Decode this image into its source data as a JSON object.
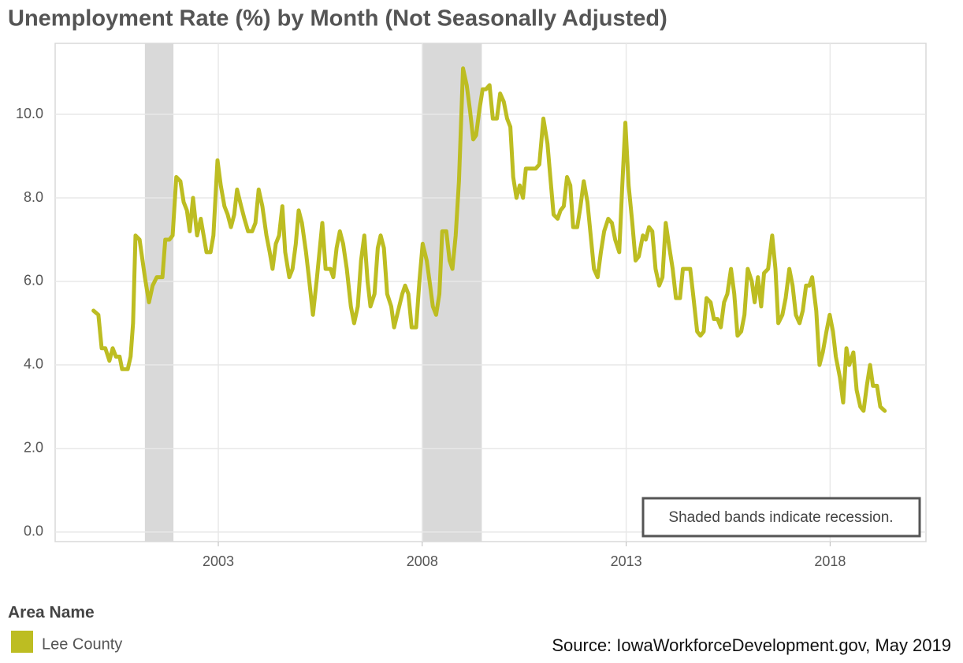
{
  "chart_data": {
    "type": "line",
    "title": "Unemployment Rate (%) by Month (Not Seasonally Adjusted)",
    "annotation": "Shaded bands indicate recession.",
    "legend_title": "Area Name",
    "source": "Source: IowaWorkforceDevelopment.gov, May 2019",
    "xlim": [
      1999.0,
      2020.35
    ],
    "ylim": [
      -0.23,
      11.7
    ],
    "xticks": [
      2003,
      2008,
      2013,
      2018
    ],
    "yticks": [
      {
        "value": 0,
        "label": "0.0"
      },
      {
        "value": 2,
        "label": "2.0"
      },
      {
        "value": 4,
        "label": "4.0"
      },
      {
        "value": 6,
        "label": "6.0"
      },
      {
        "value": 8,
        "label": "8.0"
      },
      {
        "value": 10,
        "label": "10.0"
      }
    ],
    "grid": true,
    "recessions": [
      [
        2001.2,
        2001.9
      ],
      [
        2008.0,
        2009.46
      ]
    ],
    "recession_color": "#d9d9d9",
    "x": [
      1999.94,
      2000.06,
      2000.14,
      2000.23,
      2000.33,
      2000.41,
      2000.49,
      2000.58,
      2000.64,
      2000.78,
      2000.85,
      2000.91,
      2000.97,
      2001.07,
      2001.2,
      2001.3,
      2001.39,
      2001.49,
      2001.63,
      2001.7,
      2001.8,
      2001.88,
      2001.97,
      2002.07,
      2002.15,
      2002.23,
      2002.3,
      2002.38,
      2002.48,
      2002.57,
      2002.71,
      2002.81,
      2002.88,
      2002.98,
      2003.06,
      2003.15,
      2003.23,
      2003.31,
      2003.39,
      2003.46,
      2003.56,
      2003.64,
      2003.73,
      2003.83,
      2003.91,
      2003.99,
      2004.08,
      2004.18,
      2004.26,
      2004.33,
      2004.41,
      2004.49,
      2004.57,
      2004.64,
      2004.74,
      2004.82,
      2004.9,
      2004.97,
      2005.05,
      2005.15,
      2005.22,
      2005.32,
      2005.42,
      2005.55,
      2005.63,
      2005.75,
      2005.82,
      2005.9,
      2005.98,
      2006.06,
      2006.15,
      2006.25,
      2006.33,
      2006.42,
      2006.5,
      2006.58,
      2006.66,
      2006.73,
      2006.83,
      2006.91,
      2006.98,
      2007.06,
      2007.14,
      2007.24,
      2007.31,
      2007.41,
      2007.51,
      2007.58,
      2007.66,
      2007.74,
      2007.85,
      2007.93,
      2008.01,
      2008.11,
      2008.18,
      2008.26,
      2008.34,
      2008.42,
      2008.49,
      2008.59,
      2008.67,
      2008.74,
      2008.82,
      2008.9,
      2009,
      2009.09,
      2009.17,
      2009.25,
      2009.32,
      2009.4,
      2009.48,
      2009.56,
      2009.65,
      2009.73,
      2009.83,
      2009.91,
      2010,
      2010.08,
      2010.16,
      2010.23,
      2010.31,
      2010.39,
      2010.47,
      2010.54,
      2010.64,
      2010.78,
      2010.87,
      2010.97,
      2011.07,
      2011.14,
      2011.22,
      2011.32,
      2011.39,
      2011.47,
      2011.55,
      2011.63,
      2011.7,
      2011.8,
      2011.88,
      2011.96,
      2012.05,
      2012.13,
      2012.21,
      2012.3,
      2012.38,
      2012.46,
      2012.56,
      2012.65,
      2012.73,
      2012.83,
      2012.9,
      2012.98,
      2013.06,
      2013.15,
      2013.23,
      2013.31,
      2013.41,
      2013.48,
      2013.56,
      2013.64,
      2013.72,
      2013.81,
      2013.89,
      2013.97,
      2014.06,
      2014.14,
      2014.22,
      2014.32,
      2014.39,
      2014.57,
      2014.64,
      2014.74,
      2014.82,
      2014.9,
      2014.97,
      2015.07,
      2015.15,
      2015.24,
      2015.32,
      2015.4,
      2015.48,
      2015.57,
      2015.65,
      2015.73,
      2015.82,
      2015.9,
      2015.98,
      2016.08,
      2016.15,
      2016.23,
      2016.31,
      2016.38,
      2016.48,
      2016.58,
      2016.66,
      2016.73,
      2016.83,
      2016.91,
      2017,
      2017.08,
      2017.16,
      2017.25,
      2017.33,
      2017.41,
      2017.49,
      2017.56,
      2017.66,
      2017.74,
      2017.82,
      2017.91,
      2017.99,
      2018.07,
      2018.14,
      2018.24,
      2018.32,
      2018.4,
      2018.47,
      2018.57,
      2018.65,
      2018.74,
      2018.82,
      2018.9,
      2018.98,
      2019.05,
      2019.15,
      2019.23,
      2019.34
    ],
    "series": [
      {
        "name": "Lee County",
        "color": "#bdbd22",
        "values": [
          5.3,
          5.2,
          4.4,
          4.4,
          4.1,
          4.4,
          4.2,
          4.2,
          3.9,
          3.9,
          4.2,
          5.0,
          7.1,
          7.0,
          6.1,
          5.5,
          5.9,
          6.1,
          6.1,
          7.0,
          7.0,
          7.1,
          8.5,
          8.4,
          7.9,
          7.7,
          7.2,
          8.0,
          7.1,
          7.5,
          6.7,
          6.7,
          7.1,
          8.9,
          8.3,
          7.8,
          7.6,
          7.3,
          7.6,
          8.2,
          7.8,
          7.5,
          7.2,
          7.2,
          7.4,
          8.2,
          7.8,
          7.1,
          6.7,
          6.3,
          6.9,
          7.1,
          7.8,
          6.7,
          6.1,
          6.3,
          6.9,
          7.7,
          7.4,
          6.7,
          6.1,
          5.2,
          6.1,
          7.4,
          6.3,
          6.3,
          6.1,
          6.8,
          7.2,
          6.9,
          6.3,
          5.4,
          5.0,
          5.4,
          6.5,
          7.1,
          6.0,
          5.4,
          5.7,
          6.8,
          7.1,
          6.8,
          5.7,
          5.4,
          4.9,
          5.3,
          5.7,
          5.9,
          5.7,
          4.9,
          4.9,
          6.0,
          6.9,
          6.5,
          6.0,
          5.4,
          5.2,
          5.7,
          7.2,
          7.2,
          6.5,
          6.3,
          7.1,
          8.4,
          11.1,
          10.7,
          10.1,
          9.4,
          9.5,
          10.1,
          10.6,
          10.6,
          10.7,
          9.9,
          9.9,
          10.5,
          10.3,
          9.9,
          9.7,
          8.5,
          8.0,
          8.3,
          8.0,
          8.7,
          8.7,
          8.7,
          8.8,
          9.9,
          9.3,
          8.5,
          7.6,
          7.5,
          7.7,
          7.8,
          8.5,
          8.3,
          7.3,
          7.3,
          7.8,
          8.4,
          7.9,
          7.1,
          6.3,
          6.1,
          6.7,
          7.2,
          7.5,
          7.4,
          7.0,
          6.7,
          8.2,
          9.8,
          8.3,
          7.4,
          6.5,
          6.6,
          7.1,
          7.0,
          7.3,
          7.2,
          6.3,
          5.9,
          6.1,
          7.4,
          6.8,
          6.3,
          5.6,
          5.6,
          6.3,
          6.3,
          5.7,
          4.8,
          4.7,
          4.8,
          5.6,
          5.5,
          5.1,
          5.1,
          4.9,
          5.5,
          5.7,
          6.3,
          5.7,
          4.7,
          4.8,
          5.2,
          6.3,
          6.0,
          5.5,
          6.1,
          5.4,
          6.2,
          6.3,
          7.1,
          6.3,
          5.0,
          5.2,
          5.6,
          6.3,
          5.9,
          5.2,
          5.0,
          5.3,
          5.9,
          5.9,
          6.1,
          5.3,
          4.0,
          4.3,
          4.8,
          5.2,
          4.8,
          4.2,
          3.7,
          3.1,
          4.4,
          4.0,
          4.3,
          3.4,
          3.0,
          2.9,
          3.5,
          4.0,
          3.5,
          3.5,
          3.0,
          2.9
        ]
      }
    ]
  }
}
